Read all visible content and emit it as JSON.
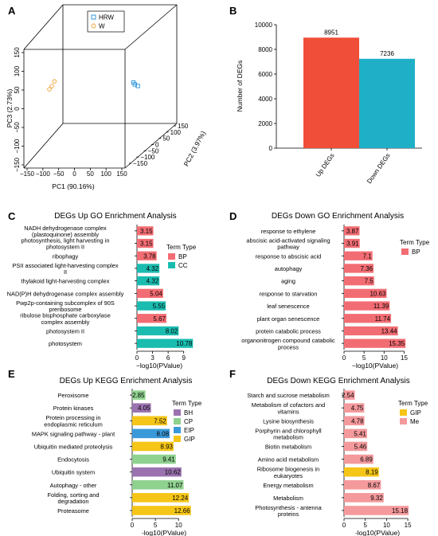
{
  "chart_data": [
    {
      "panel": "A",
      "type": "scatter",
      "title": "",
      "xlabel": "PC1 (90.16%)",
      "ylabel": "PC2 (3.97%)",
      "zlabel": "PC3 (2.73%)",
      "x_ticks": [
        "−150",
        "−100",
        "−50",
        "0",
        "50",
        "100",
        "150"
      ],
      "y_ticks": [
        "−150",
        "−100",
        "−50",
        "0",
        "50",
        "100",
        "150"
      ],
      "z_ticks": [
        "−150",
        "−100",
        "−50",
        "0",
        "50",
        "100",
        "150"
      ],
      "legend": [
        {
          "name": "HRW",
          "color": "#1f8fd6",
          "marker": "square"
        },
        {
          "name": "W",
          "color": "#f0a030",
          "marker": "circle"
        }
      ],
      "series": [
        {
          "name": "HRW",
          "color": "#1f8fd6",
          "points": [
            {
              "x": 115,
              "y": 5,
              "z": 8
            },
            {
              "x": 122,
              "y": -2,
              "z": 6
            },
            {
              "x": 132,
              "y": -5,
              "z": 3
            }
          ]
        },
        {
          "name": "W",
          "color": "#f0a030",
          "points": [
            {
              "x": -118,
              "y": 2,
              "z": 12
            },
            {
              "x": -124,
              "y": -3,
              "z": 2
            },
            {
              "x": -130,
              "y": -6,
              "z": -5
            }
          ]
        }
      ]
    },
    {
      "panel": "B",
      "type": "bar",
      "title": "",
      "categories": [
        "Up DEGs",
        "Down DEGs"
      ],
      "values": [
        8951,
        7236
      ],
      "value_labels": [
        "8951",
        "7236"
      ],
      "colors": [
        "#f04e38",
        "#1fb0c8"
      ],
      "ylabel": "Number of DEGs",
      "ylim": [
        0,
        10000
      ],
      "y_ticks": [
        0,
        2000,
        4000,
        6000,
        8000,
        10000
      ]
    },
    {
      "panel": "C",
      "type": "bar",
      "orientation": "horizontal",
      "title": "DEGs Up GO Enrichment Analysis",
      "xlabel": "−log10(PValue)",
      "x_ticks": [
        0,
        3,
        6,
        9
      ],
      "xlim": [
        0,
        11.5
      ],
      "legend_title": "Term Type",
      "legend": [
        {
          "name": "BP",
          "color": "#f26d73"
        },
        {
          "name": "CC",
          "color": "#1abcb0"
        }
      ],
      "bars": [
        {
          "label": [
            "NADH dehydrogenase complex",
            "(plastoquinone) assembly"
          ],
          "value": 3.15,
          "type": "BP",
          "value_label": "3.15"
        },
        {
          "label": [
            "photosynthesis, light harvesting in",
            "photosystem II"
          ],
          "value": 3.15,
          "type": "BP",
          "value_label": "3.15"
        },
        {
          "label": [
            "ribophagy"
          ],
          "value": 3.78,
          "type": "BP",
          "value_label": "3.78"
        },
        {
          "label": [
            "PSII associated light-harvesting complex",
            "II"
          ],
          "value": 4.32,
          "type": "CC",
          "value_label": "4.32"
        },
        {
          "label": [
            "thylakoid light-harvesting complex"
          ],
          "value": 4.32,
          "type": "CC",
          "value_label": "4.32"
        },
        {
          "label": [
            "NAD(P)H dehydrogenase complex assembly"
          ],
          "value": 5.04,
          "type": "BP",
          "value_label": "5.04"
        },
        {
          "label": [
            "Pwp2p-containing subcomplex of 90S",
            "preribosome"
          ],
          "value": 5.55,
          "type": "CC",
          "value_label": "5.55"
        },
        {
          "label": [
            "ribulose bisphosphate carboxylase",
            "complex assembly"
          ],
          "value": 5.67,
          "type": "BP",
          "value_label": "5.67"
        },
        {
          "label": [
            "photosystem II"
          ],
          "value": 8.02,
          "type": "CC",
          "value_label": "8.02"
        },
        {
          "label": [
            "photosystem"
          ],
          "value": 10.78,
          "type": "CC",
          "value_label": "10.78"
        }
      ]
    },
    {
      "panel": "D",
      "type": "bar",
      "orientation": "horizontal",
      "title": "DEGs Down GO Enrichment Analysis",
      "xlabel": "−log10(PValue)",
      "x_ticks": [
        0,
        5,
        10,
        15
      ],
      "xlim": [
        0,
        16.3
      ],
      "legend_title": "Term Type",
      "legend": [
        {
          "name": "BP",
          "color": "#f26d73"
        }
      ],
      "bars": [
        {
          "label": [
            "response to ethylene"
          ],
          "value": 3.87,
          "type": "BP",
          "value_label": "3.87"
        },
        {
          "label": [
            "abscisic acid-activated signaling",
            "pathway"
          ],
          "value": 3.91,
          "type": "BP",
          "value_label": "3.91"
        },
        {
          "label": [
            "response to abscisic acid"
          ],
          "value": 7.1,
          "type": "BP",
          "value_label": "7.1"
        },
        {
          "label": [
            "autophagy"
          ],
          "value": 7.36,
          "type": "BP",
          "value_label": "7.36"
        },
        {
          "label": [
            "aging"
          ],
          "value": 7.5,
          "type": "BP",
          "value_label": "7.5"
        },
        {
          "label": [
            "response to starvation"
          ],
          "value": 10.63,
          "type": "BP",
          "value_label": "10.63"
        },
        {
          "label": [
            "leaf senescence"
          ],
          "value": 11.39,
          "type": "BP",
          "value_label": "11.39"
        },
        {
          "label": [
            "plant organ senescence"
          ],
          "value": 11.74,
          "type": "BP",
          "value_label": "11.74"
        },
        {
          "label": [
            "protein catabolic process"
          ],
          "value": 13.44,
          "type": "BP",
          "value_label": "13.44"
        },
        {
          "label": [
            "organonitrogen compound catabolic",
            "process"
          ],
          "value": 15.35,
          "type": "BP",
          "value_label": "15.35"
        }
      ]
    },
    {
      "panel": "E",
      "type": "bar",
      "orientation": "horizontal",
      "title": "DEGs Up KEGG Enrichment Analysis",
      "xlabel": "-log10(PValue)",
      "x_ticks": [
        0,
        5,
        10
      ],
      "xlim": [
        0,
        13.4
      ],
      "legend_title": "Term Type",
      "legend": [
        {
          "name": "BH",
          "color": "#9b72b0"
        },
        {
          "name": "CP",
          "color": "#8fd18f"
        },
        {
          "name": "EIP",
          "color": "#3a9ad9"
        },
        {
          "name": "GIP",
          "color": "#f5c518"
        }
      ],
      "bars": [
        {
          "label": [
            "Peroxisome"
          ],
          "value": 2.85,
          "type": "CP",
          "value_label": "2.85"
        },
        {
          "label": [
            "Protein kinases"
          ],
          "value": 4.05,
          "type": "BH",
          "value_label": "4.05"
        },
        {
          "label": [
            "Protein processing in",
            "endoplasmic reticulum"
          ],
          "value": 7.52,
          "type": "GIP",
          "value_label": "7.52"
        },
        {
          "label": [
            "MAPK signaling pathway - plant"
          ],
          "value": 8.08,
          "type": "EIP",
          "value_label": "8.08"
        },
        {
          "label": [
            "Ubiquitin mediated proteolysis"
          ],
          "value": 8.93,
          "type": "GIP",
          "value_label": "8.93"
        },
        {
          "label": [
            "Endocytosis"
          ],
          "value": 9.41,
          "type": "CP",
          "value_label": "9.41"
        },
        {
          "label": [
            "Ubiquitin system"
          ],
          "value": 10.62,
          "type": "BH",
          "value_label": "10.62"
        },
        {
          "label": [
            "Autophagy - other"
          ],
          "value": 11.07,
          "type": "CP",
          "value_label": "11.07"
        },
        {
          "label": [
            "Folding, sorting and",
            "degradation"
          ],
          "value": 12.24,
          "type": "GIP",
          "value_label": "12.24"
        },
        {
          "label": [
            "Proteasome"
          ],
          "value": 12.66,
          "type": "GIP",
          "value_label": "12.66"
        }
      ]
    },
    {
      "panel": "F",
      "type": "bar",
      "orientation": "horizontal",
      "title": "DEGs Down KEGG Enrichment Analysis",
      "xlabel": "-log10(PValue)",
      "x_ticks": [
        0,
        5,
        10,
        15
      ],
      "xlim": [
        0,
        16.1
      ],
      "legend_title": "Term Type",
      "legend": [
        {
          "name": "GIP",
          "color": "#f5c518"
        },
        {
          "name": "Me",
          "color": "#f4999c"
        }
      ],
      "bars": [
        {
          "label": [
            "Starch and sucrose metabolism"
          ],
          "value": 2.54,
          "type": "Me",
          "value_label": "2.54"
        },
        {
          "label": [
            "Metabolism of cofactors and",
            "vitamins"
          ],
          "value": 4.75,
          "type": "Me",
          "value_label": "4.75"
        },
        {
          "label": [
            "Lysine biosynthesis"
          ],
          "value": 4.78,
          "type": "Me",
          "value_label": "4.78"
        },
        {
          "label": [
            "Porphyrin and chlorophyll",
            "metabolism"
          ],
          "value": 5.41,
          "type": "Me",
          "value_label": "5.41"
        },
        {
          "label": [
            "Biotin metabolism"
          ],
          "value": 5.46,
          "type": "Me",
          "value_label": "5.46"
        },
        {
          "label": [
            "Amino acid metabolism"
          ],
          "value": 6.89,
          "type": "Me",
          "value_label": "6.89"
        },
        {
          "label": [
            "Ribosome biogenesis in",
            "eukaryotes"
          ],
          "value": 8.19,
          "type": "GIP",
          "value_label": "8.19"
        },
        {
          "label": [
            "Energy metabolism"
          ],
          "value": 8.67,
          "type": "Me",
          "value_label": "8.67"
        },
        {
          "label": [
            "Metabolism"
          ],
          "value": 9.32,
          "type": "Me",
          "value_label": "9.32"
        },
        {
          "label": [
            "Photosynthesis - antenna",
            "proteins"
          ],
          "value": 15.18,
          "type": "Me",
          "value_label": "15.18"
        }
      ]
    }
  ]
}
